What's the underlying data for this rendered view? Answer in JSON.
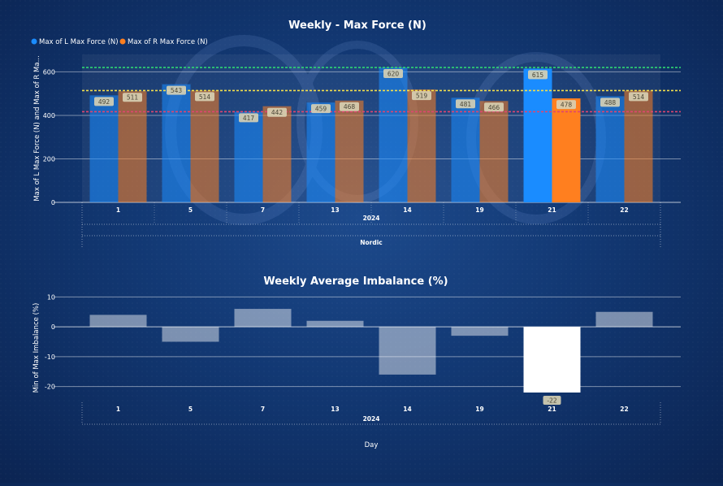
{
  "colors": {
    "left_series": "#1a8cff",
    "right_series": "#ff7f1f",
    "imbalance_bar": "#ffffff",
    "ref_green": "#2ed573",
    "ref_yellow": "#f4e04d",
    "ref_pink": "#e0456f",
    "label_box": "#d8d2b4"
  },
  "chart_data": [
    {
      "type": "bar",
      "title": "Weekly - Max Force (N)",
      "ylabel": "Max of L Max Force (N) and Max of R Ma...",
      "xlabel": "Nordic",
      "x_group_label": "2024",
      "categories": [
        "1",
        "5",
        "7",
        "13",
        "14",
        "19",
        "21",
        "22"
      ],
      "series": [
        {
          "name": "Max of L Max Force (N)",
          "values": [
            492,
            543,
            417,
            459,
            620,
            481,
            615,
            488
          ]
        },
        {
          "name": "Max of R Max Force (N)",
          "values": [
            511,
            514,
            442,
            468,
            519,
            466,
            478,
            514
          ]
        }
      ],
      "highlight_index": 6,
      "ylim": [
        0,
        680
      ],
      "yticks": [
        0,
        200,
        400,
        600
      ],
      "reference_lines": [
        620,
        514,
        417
      ],
      "legend_position": "top-left",
      "grid": true
    },
    {
      "type": "bar",
      "title": "Weekly Average Imbalance (%)",
      "ylabel": "Min of Max Imbalance (%)",
      "xlabel": "Day",
      "x_group_label": "2024",
      "categories": [
        "1",
        "5",
        "7",
        "13",
        "14",
        "19",
        "21",
        "22"
      ],
      "values": [
        4,
        -5,
        6,
        2,
        -16,
        -3,
        -22,
        5
      ],
      "labels": [
        "",
        "",
        "",
        "",
        "",
        "",
        "-22",
        ""
      ],
      "highlight_index": 6,
      "ylim": [
        -25,
        12
      ],
      "yticks": [
        -20,
        -10,
        0,
        10
      ],
      "grid": true
    }
  ]
}
